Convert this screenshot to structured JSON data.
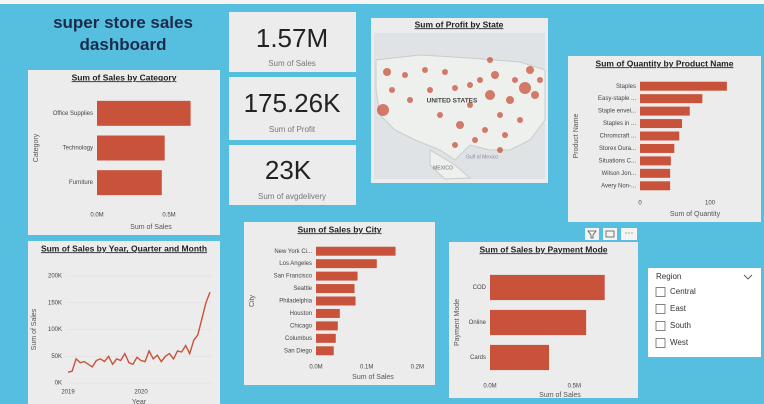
{
  "header": {
    "title": "super store sales dashboard"
  },
  "cards": [
    {
      "value": "1.57M",
      "label": "Sum of Sales"
    },
    {
      "value": "175.26K",
      "label": "Sum of Profit"
    },
    {
      "value": "23K",
      "label": "Sum of avgdelivery"
    }
  ],
  "map": {
    "title": "Sum of Profit by State",
    "labels": [
      "UNITED STATES",
      "MEXICO",
      "Gulf of Mexico"
    ]
  },
  "slicer": {
    "title": "Region",
    "items": [
      "Central",
      "East",
      "South",
      "West"
    ]
  },
  "chart_data": [
    {
      "type": "hbar",
      "title": "Sum of Sales by Category",
      "x_label": "Sum of Sales",
      "y_label": "Category",
      "categories": [
        "Office Supplies",
        "Technology",
        "Furniture"
      ],
      "values": [
        0.65,
        0.47,
        0.45
      ],
      "color": "#c8523a",
      "xlim": [
        0,
        0.75
      ],
      "xticks": [
        {
          "value": 0,
          "label": "0.0M"
        },
        {
          "value": 0.5,
          "label": "0.5M"
        }
      ]
    },
    {
      "type": "hbar",
      "title": "Sum of Quantity by Product Name",
      "x_label": "Sum of Quantity",
      "y_label": "Product Name",
      "categories": [
        "Staples",
        "Easy-staple ...",
        "Staple envel...",
        "Staples in ...",
        "Chromcraft ...",
        "Storex Dura...",
        "Situations C...",
        "Wilson Jon...",
        "Avery Non-..."
      ],
      "values": [
        124,
        89,
        71,
        60,
        56,
        49,
        44,
        43,
        43
      ],
      "color": "#c8523a",
      "xlim": [
        0,
        157
      ],
      "xticks": [
        0,
        100
      ]
    },
    {
      "type": "line",
      "title": "Sum of Sales by Year, Quarter and Month",
      "x_label": "Year",
      "y_label": "Sum of Sales",
      "categories": [
        "2019",
        null,
        null,
        null,
        null,
        null,
        null,
        null,
        null,
        null,
        null,
        null,
        null,
        null,
        null,
        null,
        null,
        null,
        "2020",
        null,
        null,
        null,
        null,
        null,
        null,
        null,
        null,
        null,
        null,
        null,
        null,
        null,
        null,
        null,
        null,
        null
      ],
      "values": [
        20,
        22,
        45,
        38,
        40,
        35,
        30,
        42,
        45,
        40,
        50,
        35,
        45,
        42,
        55,
        38,
        35,
        48,
        42,
        40,
        60,
        45,
        52,
        40,
        50,
        55,
        45,
        60,
        58,
        70,
        55,
        80,
        90,
        120,
        150,
        170
      ],
      "color": "#c8523a",
      "ylim": [
        0,
        200
      ],
      "yticks": [
        {
          "value": 0,
          "label": "0K"
        },
        {
          "value": 50,
          "label": "50K"
        },
        {
          "value": 100,
          "label": "100K"
        },
        {
          "value": 150,
          "label": "150K"
        },
        {
          "value": 200,
          "label": "200K"
        }
      ]
    },
    {
      "type": "hbar",
      "title": "Sum of Sales by City",
      "x_label": "Sum of Sales",
      "y_label": "City",
      "categories": [
        "New York Ci...",
        "Los Angeles",
        "San Francisco",
        "Seattle",
        "Philadelphia",
        "Houston",
        "Chicago",
        "Columbus",
        "San Diego"
      ],
      "values": [
        0.157,
        0.12,
        0.082,
        0.076,
        0.078,
        0.047,
        0.043,
        0.039,
        0.035
      ],
      "color": "#c8523a",
      "xlim": [
        0,
        0.225
      ],
      "xticks": [
        {
          "value": 0,
          "label": "0.0M"
        },
        {
          "value": 0.1,
          "label": "0.1M"
        },
        {
          "value": 0.2,
          "label": "0.2M"
        }
      ]
    },
    {
      "type": "hbar",
      "title": "Sum of Sales by Payment Mode",
      "x_label": "Sum of Sales",
      "y_label": "Payment Mode",
      "categories": [
        "COD",
        "Online",
        "Cards"
      ],
      "values": [
        0.68,
        0.57,
        0.35
      ],
      "color": "#c8523a",
      "xlim": [
        0,
        0.83
      ],
      "xticks": [
        {
          "value": 0,
          "label": "0.0M"
        },
        {
          "value": 0.5,
          "label": "0.5M"
        }
      ]
    }
  ]
}
